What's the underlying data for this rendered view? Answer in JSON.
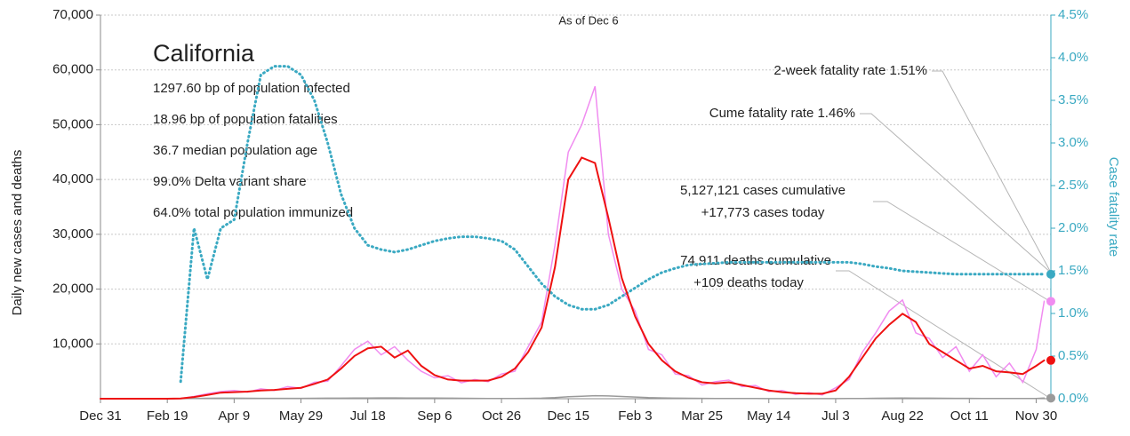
{
  "chart_data": {
    "type": "line",
    "title": "As of Dec 6",
    "y_label": "Daily new cases and deaths",
    "y2_label": "Case fatality rate",
    "info_title": "California",
    "info_lines": [
      "1297.60 bp of population infected",
      "18.96 bp of population fatalities",
      "36.7 median population age",
      "99.0% Delta variant share",
      "64.0% total population immunized"
    ],
    "annotations": [
      "2-week fatality rate 1.51%",
      "Cume fatality rate 1.46%",
      "5,127,121 cases cumulative",
      "+17,773 cases today",
      "74,911 deaths cumulative",
      "+109 deaths today"
    ],
    "x": [
      0,
      10,
      20,
      30,
      40,
      50,
      60,
      70,
      80,
      90,
      100,
      110,
      120,
      130,
      140,
      150,
      160,
      170,
      180,
      190,
      200,
      210,
      220,
      230,
      240,
      250,
      260,
      270,
      280,
      290,
      300,
      310,
      320,
      330,
      340,
      350,
      360,
      370,
      380,
      390,
      400,
      410,
      420,
      430,
      440,
      450,
      460,
      470,
      480,
      490,
      500,
      510,
      520,
      530,
      540,
      550,
      560,
      570,
      580,
      590,
      600,
      610,
      620,
      630,
      640,
      650,
      660,
      670,
      680,
      690,
      700,
      706
    ],
    "xlim": [
      0,
      711
    ],
    "xticks": [
      {
        "value": 0,
        "label": "Dec 31"
      },
      {
        "value": 50,
        "label": "Feb 19"
      },
      {
        "value": 100,
        "label": "Apr 9"
      },
      {
        "value": 150,
        "label": "May 29"
      },
      {
        "value": 200,
        "label": "Jul 18"
      },
      {
        "value": 250,
        "label": "Sep 6"
      },
      {
        "value": 300,
        "label": "Oct 26"
      },
      {
        "value": 350,
        "label": "Dec 15"
      },
      {
        "value": 400,
        "label": "Feb 3"
      },
      {
        "value": 450,
        "label": "Mar 25"
      },
      {
        "value": 500,
        "label": "May 14"
      },
      {
        "value": 550,
        "label": "Jul 3"
      },
      {
        "value": 600,
        "label": "Aug 22"
      },
      {
        "value": 650,
        "label": "Oct 11"
      },
      {
        "value": 700,
        "label": "Nov 30"
      }
    ],
    "ylim": [
      0,
      70000
    ],
    "yticks": [
      {
        "value": 10000,
        "label": "10,000"
      },
      {
        "value": 20000,
        "label": "20,000"
      },
      {
        "value": 30000,
        "label": "30,000"
      },
      {
        "value": 40000,
        "label": "40,000"
      },
      {
        "value": 50000,
        "label": "50,000"
      },
      {
        "value": 60000,
        "label": "60,000"
      },
      {
        "value": 70000,
        "label": "70,000"
      }
    ],
    "y2lim": [
      0,
      4.5
    ],
    "y2ticks": [
      {
        "value": 0,
        "label": "0.0%"
      },
      {
        "value": 0.5,
        "label": "0.5%"
      },
      {
        "value": 1,
        "label": "1.0%"
      },
      {
        "value": 1.5,
        "label": "1.5%"
      },
      {
        "value": 2,
        "label": "2.0%"
      },
      {
        "value": 2.5,
        "label": "2.5%"
      },
      {
        "value": 3,
        "label": "3.0%"
      },
      {
        "value": 3.5,
        "label": "3.5%"
      },
      {
        "value": 4,
        "label": "4.0%"
      },
      {
        "value": 4.5,
        "label": "4.5%"
      }
    ],
    "grid": true,
    "series": [
      {
        "color": "#f08cf0",
        "values": [
          0,
          0,
          0,
          0,
          0,
          0,
          50,
          400,
          900,
          1300,
          1500,
          1200,
          1800,
          1500,
          2200,
          1900,
          3000,
          3200,
          6000,
          9000,
          10500,
          8000,
          9500,
          7000,
          5000,
          3800,
          4200,
          2900,
          3500,
          3100,
          4500,
          5000,
          9500,
          14000,
          28000,
          45000,
          50000,
          57000,
          30000,
          20000,
          16000,
          9000,
          8000,
          4500,
          4200,
          2500,
          3100,
          3400,
          2200,
          2400,
          1300,
          1500,
          800,
          1100,
          700,
          2000,
          3500,
          8500,
          12000,
          16000,
          18000,
          12000,
          11000,
          7500,
          9500,
          5000,
          8000,
          4000,
          6500,
          3000,
          9000,
          17773
        ]
      },
      {
        "color": "#9a9a9a",
        "values": [
          0,
          0,
          0,
          0,
          0,
          0,
          20,
          50,
          80,
          90,
          90,
          80,
          70,
          60,
          70,
          70,
          80,
          90,
          100,
          120,
          130,
          140,
          140,
          130,
          120,
          110,
          100,
          80,
          60,
          50,
          50,
          50,
          70,
          100,
          200,
          350,
          450,
          550,
          500,
          400,
          300,
          200,
          150,
          100,
          80,
          70,
          50,
          40,
          30,
          30,
          20,
          20,
          20,
          20,
          20,
          20,
          30,
          50,
          80,
          100,
          110,
          100,
          90,
          80,
          60,
          60,
          50,
          50,
          40,
          40,
          40,
          109
        ]
      },
      {
        "color": "#ee1111",
        "values": [
          0,
          0,
          0,
          0,
          0,
          0,
          30,
          300,
          700,
          1100,
          1200,
          1300,
          1500,
          1600,
          1800,
          2000,
          2700,
          3500,
          5500,
          7800,
          9200,
          9500,
          7500,
          8800,
          6000,
          4300,
          3500,
          3300,
          3300,
          3300,
          4000,
          5500,
          8500,
          13000,
          24000,
          40000,
          44000,
          43000,
          33000,
          22000,
          15000,
          10000,
          7000,
          5000,
          3800,
          3000,
          2800,
          3000,
          2500,
          2000,
          1500,
          1200,
          1000,
          900,
          900,
          1500,
          4000,
          7500,
          11000,
          13500,
          15500,
          14000,
          10000,
          8500,
          7000,
          5500,
          6000,
          5000,
          4800,
          4500,
          6000,
          7000
        ]
      },
      {
        "color": "#3aa9c2",
        "axis": "y2",
        "dotted": true,
        "values": [
          null,
          null,
          null,
          null,
          null,
          null,
          0.2,
          2.0,
          1.4,
          2.0,
          2.1,
          3.0,
          3.8,
          3.9,
          3.9,
          3.8,
          3.5,
          3.0,
          2.4,
          2.0,
          1.8,
          1.75,
          1.72,
          1.75,
          1.8,
          1.85,
          1.88,
          1.9,
          1.9,
          1.88,
          1.85,
          1.75,
          1.55,
          1.35,
          1.2,
          1.1,
          1.05,
          1.05,
          1.1,
          1.2,
          1.3,
          1.4,
          1.48,
          1.53,
          1.57,
          1.58,
          1.59,
          1.6,
          1.6,
          1.6,
          1.6,
          1.6,
          1.6,
          1.6,
          1.6,
          1.6,
          1.6,
          1.58,
          1.55,
          1.53,
          1.5,
          1.49,
          1.48,
          1.47,
          1.46,
          1.46,
          1.46,
          1.46,
          1.46,
          1.46,
          1.46,
          1.46
        ]
      }
    ]
  }
}
